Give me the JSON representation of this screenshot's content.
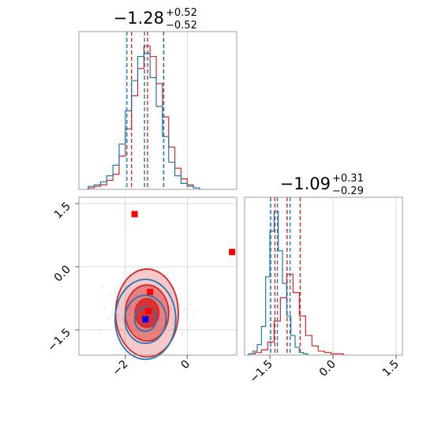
{
  "chart_data": [
    {
      "type": "histogram",
      "panel": "marginal-param-1",
      "title_value": "−1.28",
      "title_plus": "+0.52",
      "title_minus": "−0.52",
      "xlim": [
        -3.5,
        1.6
      ],
      "grid": true,
      "series": [
        {
          "name": "",
          "color": "#d62728",
          "quantiles": [
            -1.8,
            -1.28,
            -0.76
          ],
          "bins": [
            -3.2,
            -3.0,
            -2.8,
            -2.6,
            -2.4,
            -2.2,
            -2.0,
            -1.8,
            -1.6,
            -1.4,
            -1.2,
            -1.0,
            -0.8,
            -0.6,
            -0.4,
            -0.2,
            0.0,
            0.2,
            0.4
          ],
          "counts": [
            1,
            2,
            3,
            6,
            10,
            22,
            40,
            62,
            80,
            95,
            88,
            70,
            48,
            28,
            14,
            7,
            3,
            1
          ]
        },
        {
          "name": "",
          "color": "#1f77b4",
          "quantiles": [
            -1.95,
            -1.38,
            -0.76
          ],
          "bins": [
            -3.2,
            -3.0,
            -2.8,
            -2.6,
            -2.4,
            -2.2,
            -2.0,
            -1.8,
            -1.6,
            -1.4,
            -1.2,
            -1.0,
            -0.8,
            -0.6,
            -0.4,
            -0.2,
            0.0,
            0.2,
            0.4
          ],
          "counts": [
            2,
            3,
            5,
            9,
            16,
            30,
            52,
            72,
            88,
            90,
            74,
            55,
            35,
            18,
            9,
            4,
            2,
            1
          ]
        }
      ]
    },
    {
      "type": "histogram",
      "panel": "marginal-param-2",
      "title_value": "−1.09",
      "title_plus": "+0.31",
      "title_minus": "−0.29",
      "xlim": [
        -2.1,
        1.65
      ],
      "xticks": [
        -1.5,
        0.0,
        1.5
      ],
      "xtick_labels": [
        "−1.5",
        "0.0",
        "1.5"
      ],
      "grid": true,
      "series": [
        {
          "name": "",
          "color": "#d62728",
          "quantiles": [
            -1.38,
            -1.09,
            -0.78
          ],
          "bins": [
            -2.0,
            -1.85,
            -1.7,
            -1.55,
            -1.4,
            -1.25,
            -1.1,
            -0.95,
            -0.8,
            -0.65,
            -0.5,
            -0.35,
            -0.2,
            -0.05,
            0.1,
            0.25
          ],
          "counts": [
            1,
            2,
            4,
            10,
            26,
            44,
            62,
            48,
            30,
            15,
            7,
            3,
            2,
            1,
            1
          ]
        },
        {
          "name": "",
          "color": "#1f77b4",
          "quantiles": [
            -1.48,
            -1.32,
            -1.02
          ],
          "bins": [
            -2.0,
            -1.9,
            -1.8,
            -1.7,
            -1.6,
            -1.5,
            -1.4,
            -1.3,
            -1.2,
            -1.1,
            -1.0,
            -0.9,
            -0.8,
            -0.7,
            -0.6
          ],
          "counts": [
            1,
            3,
            8,
            22,
            60,
            95,
            110,
            80,
            55,
            30,
            15,
            6,
            2,
            1
          ]
        }
      ]
    },
    {
      "type": "scatter",
      "panel": "joint-param-1-param-2",
      "xlim": [
        -3.5,
        1.6
      ],
      "ylim": [
        -2.1,
        1.65
      ],
      "xticks": [
        -2,
        0
      ],
      "xtick_labels": [
        "−2",
        "0"
      ],
      "yticks": [
        -1.5,
        0.0,
        1.5
      ],
      "ytick_labels": [
        "−1.5",
        "0.0",
        "1.5"
      ],
      "grid": true,
      "contours": [
        {
          "color": "#d62728",
          "center": [
            -1.3,
            -1.1
          ],
          "radii": [
            [
              0.55,
              0.18
            ],
            [
              1.0,
              0.35
            ],
            [
              1.45,
              0.55
            ]
          ]
        },
        {
          "color": "#1f77b4",
          "center": [
            -1.35,
            -1.25
          ],
          "radii": [
            [
              0.5,
              0.15
            ],
            [
              0.95,
              0.3
            ],
            [
              1.4,
              0.5
            ]
          ]
        }
      ],
      "points": [
        {
          "x": -1.7,
          "y": 1.25,
          "color": "#ff0000"
        },
        {
          "x": 1.45,
          "y": 0.35,
          "color": "#ff0000"
        },
        {
          "x": -1.2,
          "y": -0.6,
          "color": "#ff0000"
        },
        {
          "x": -1.25,
          "y": -1.05,
          "color": "#ff0000"
        },
        {
          "x": -1.35,
          "y": -1.25,
          "color": "#0000ff"
        }
      ]
    }
  ]
}
